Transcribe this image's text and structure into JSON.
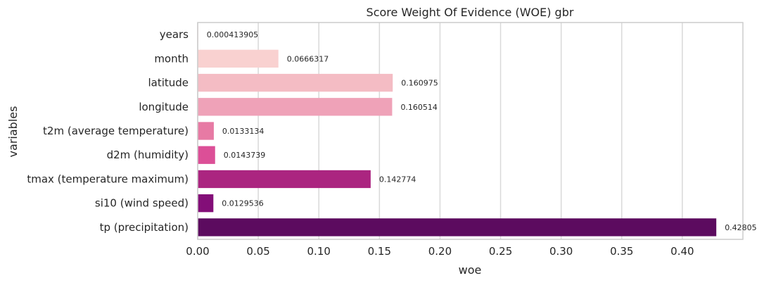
{
  "chart_data": {
    "type": "bar",
    "orientation": "horizontal",
    "title": "Score Weight Of Evidence (WOE) gbr",
    "xlabel": "woe",
    "ylabel": "variables",
    "xlim": [
      0,
      0.45
    ],
    "x_ticks": [
      "0.00",
      "0.05",
      "0.10",
      "0.15",
      "0.20",
      "0.25",
      "0.30",
      "0.35",
      "0.40"
    ],
    "grid": "vertical",
    "categories": [
      "years",
      "month",
      "latitude",
      "longitude",
      "t2m (average temperature)",
      "d2m (humidity)",
      "tmax (temperature maximum)",
      "si10 (wind speed)",
      "tp (precipitation)"
    ],
    "values": [
      0.000413905,
      0.0666317,
      0.160975,
      0.160514,
      0.0133134,
      0.0143739,
      0.142774,
      0.0129536,
      0.42805
    ],
    "data_labels": [
      "0.000413905",
      "0.0666317",
      "0.160975",
      "0.160514",
      "0.0133134",
      "0.0143739",
      "0.142774",
      "0.0129536",
      "0.42805"
    ],
    "colors": [
      "#fde0dd",
      "#f9d1d0",
      "#f4bcc4",
      "#efa2b8",
      "#e77aa4",
      "#dc4f97",
      "#ab2580",
      "#830e78",
      "#5c0b5f"
    ]
  }
}
